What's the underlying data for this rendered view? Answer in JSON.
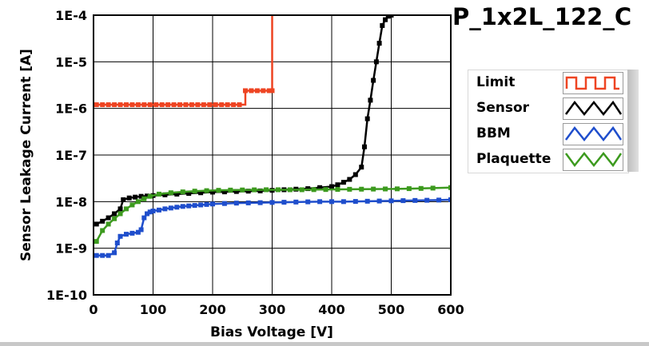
{
  "chart_data": {
    "type": "line",
    "title": "P_1x2L_122_C",
    "xlabel": "Bias Voltage [V]",
    "ylabel": "Sensor Leakage Current [A]",
    "xlim": [
      0,
      600
    ],
    "ylim": [
      1e-10,
      0.0001
    ],
    "yscale": "log",
    "grid": true,
    "legend": "right",
    "x_ticks": [
      0,
      100,
      200,
      300,
      400,
      500,
      600
    ],
    "y_ticks": [
      1e-10,
      1e-09,
      1e-08,
      1e-07,
      1e-06,
      1e-05,
      0.0001
    ],
    "y_tick_labels": [
      "1E-10",
      "1E-9",
      "1E-8",
      "1E-7",
      "1E-6",
      "1E-5",
      "1E-4"
    ],
    "series": [
      {
        "name": "Limit",
        "color": "#ee4422",
        "step": true,
        "x": [
          5,
          15,
          25,
          35,
          45,
          55,
          65,
          75,
          85,
          95,
          105,
          115,
          125,
          135,
          145,
          155,
          165,
          175,
          185,
          195,
          205,
          215,
          225,
          235,
          245,
          255,
          265,
          275,
          285,
          295,
          300,
          300
        ],
        "y": [
          1.2e-06,
          1.2e-06,
          1.2e-06,
          1.2e-06,
          1.2e-06,
          1.2e-06,
          1.2e-06,
          1.2e-06,
          1.2e-06,
          1.2e-06,
          1.2e-06,
          1.2e-06,
          1.2e-06,
          1.2e-06,
          1.2e-06,
          1.2e-06,
          1.2e-06,
          1.2e-06,
          1.2e-06,
          1.2e-06,
          1.2e-06,
          1.2e-06,
          1.2e-06,
          1.2e-06,
          1.2e-06,
          2.4e-06,
          2.4e-06,
          2.4e-06,
          2.4e-06,
          2.4e-06,
          2.4e-06,
          0.0001
        ]
      },
      {
        "name": "Sensor",
        "color": "#000000",
        "step": false,
        "x": [
          5,
          15,
          25,
          35,
          45,
          50,
          60,
          70,
          80,
          90,
          100,
          120,
          140,
          160,
          180,
          200,
          220,
          240,
          260,
          280,
          300,
          320,
          340,
          360,
          380,
          400,
          410,
          420,
          430,
          440,
          450,
          455,
          460,
          465,
          470,
          475,
          480,
          485,
          490,
          495,
          500
        ],
        "y": [
          3.3e-09,
          3.8e-09,
          4.5e-09,
          5.5e-09,
          7e-09,
          1.1e-08,
          1.2e-08,
          1.25e-08,
          1.3e-08,
          1.32e-08,
          1.35e-08,
          1.4e-08,
          1.45e-08,
          1.5e-08,
          1.55e-08,
          1.6e-08,
          1.62e-08,
          1.65e-08,
          1.68e-08,
          1.7e-08,
          1.75e-08,
          1.8e-08,
          1.85e-08,
          1.9e-08,
          2e-08,
          2.1e-08,
          2.3e-08,
          2.6e-08,
          3e-08,
          3.8e-08,
          5.5e-08,
          1.5e-07,
          6e-07,
          1.5e-06,
          4e-06,
          1e-05,
          2.5e-05,
          6e-05,
          8e-05,
          9.5e-05,
          0.0001
        ]
      },
      {
        "name": "BBM",
        "color": "#1f4ecc",
        "step": false,
        "x": [
          5,
          15,
          25,
          35,
          40,
          45,
          55,
          65,
          75,
          80,
          85,
          90,
          95,
          100,
          110,
          120,
          130,
          140,
          150,
          160,
          170,
          180,
          190,
          200,
          220,
          240,
          260,
          280,
          300,
          320,
          340,
          360,
          380,
          400,
          420,
          440,
          460,
          480,
          500,
          520,
          540,
          560,
          580,
          600
        ],
        "y": [
          7e-10,
          7e-10,
          7e-10,
          8e-10,
          1.3e-09,
          1.8e-09,
          2e-09,
          2.1e-09,
          2.2e-09,
          2.5e-09,
          4.5e-09,
          5.5e-09,
          6e-09,
          6.3e-09,
          6.6e-09,
          7e-09,
          7.3e-09,
          7.6e-09,
          7.9e-09,
          8.1e-09,
          8.3e-09,
          8.5e-09,
          8.7e-09,
          8.9e-09,
          9.1e-09,
          9.3e-09,
          9.4e-09,
          9.5e-09,
          9.6e-09,
          9.7e-09,
          9.8e-09,
          9.9e-09,
          1e-08,
          1e-08,
          1e-08,
          1.01e-08,
          1.02e-08,
          1.03e-08,
          1.04e-08,
          1.05e-08,
          1.06e-08,
          1.07e-08,
          1.08e-08,
          1.1e-08
        ]
      },
      {
        "name": "Plaquette",
        "color": "#3c9a1e",
        "step": false,
        "x": [
          5,
          15,
          25,
          35,
          45,
          55,
          65,
          75,
          85,
          95,
          110,
          130,
          150,
          170,
          190,
          210,
          230,
          250,
          270,
          290,
          310,
          330,
          350,
          370,
          390,
          410,
          430,
          450,
          470,
          490,
          510,
          530,
          550,
          570,
          600
        ],
        "y": [
          1.4e-09,
          2.4e-09,
          3.3e-09,
          4.3e-09,
          5.5e-09,
          7e-09,
          8.5e-09,
          1e-08,
          1.15e-08,
          1.3e-08,
          1.45e-08,
          1.55e-08,
          1.62e-08,
          1.68e-08,
          1.72e-08,
          1.75e-08,
          1.77e-08,
          1.78e-08,
          1.79e-08,
          1.8e-08,
          1.8e-08,
          1.8e-08,
          1.8e-08,
          1.81e-08,
          1.82e-08,
          1.83e-08,
          1.84e-08,
          1.85e-08,
          1.86e-08,
          1.87e-08,
          1.88e-08,
          1.9e-08,
          1.92e-08,
          1.95e-08,
          2e-08
        ]
      }
    ]
  }
}
